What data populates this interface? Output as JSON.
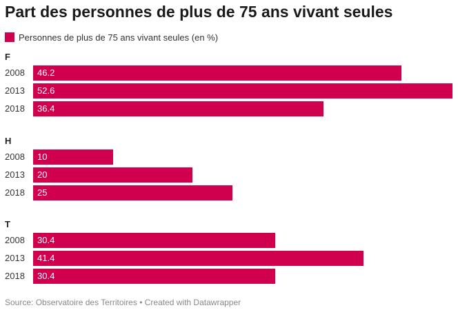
{
  "colors": {
    "accent": "#d1004e"
  },
  "chart_data": {
    "type": "bar",
    "orientation": "horizontal",
    "title": "Part des personnes de plus de 75 ans vivant seules",
    "legend": [
      "Personnes de plus de 75 ans vivant seules (en %)"
    ],
    "legend_position": "top-left",
    "groups": [
      {
        "name": "F",
        "categories": [
          "2008",
          "2013",
          "2018"
        ],
        "values": [
          46.2,
          52.6,
          36.4
        ]
      },
      {
        "name": "H",
        "categories": [
          "2008",
          "2013",
          "2018"
        ],
        "values": [
          10,
          20,
          25
        ]
      },
      {
        "name": "T",
        "categories": [
          "2008",
          "2013",
          "2018"
        ],
        "values": [
          30.4,
          41.4,
          30.4
        ]
      }
    ],
    "xlim": [
      0,
      52.6
    ],
    "grid": false
  },
  "footer": {
    "source": "Source: Observatoire des Territoires • Created with Datawrapper"
  }
}
